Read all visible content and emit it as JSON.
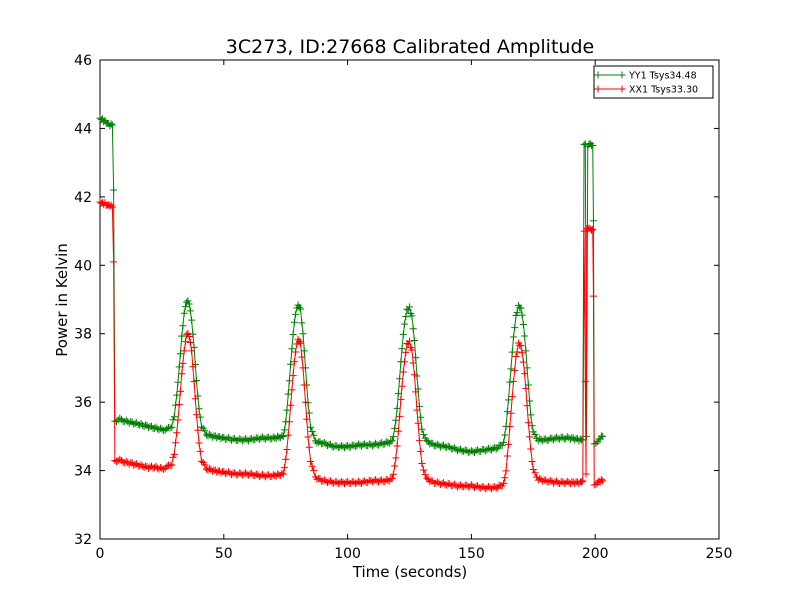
{
  "chart_data": {
    "type": "line",
    "title": "3C273, ID:27668 Calibrated Amplitude",
    "xlabel": "Time (seconds)",
    "ylabel": "Power in Kelvin",
    "xlim": [
      0,
      250
    ],
    "ylim": [
      32,
      46
    ],
    "x_ticks": [
      0,
      50,
      100,
      150,
      200,
      250
    ],
    "y_ticks": [
      32,
      34,
      36,
      38,
      40,
      42,
      44,
      46
    ],
    "grid": false,
    "legend_position": "top-right",
    "series": [
      {
        "name": "YY1 Tsys34.48",
        "color": "#008000",
        "marker": "+",
        "points": [
          [
            0,
            44.3
          ],
          [
            1,
            44.25
          ],
          [
            2,
            44.2
          ],
          [
            3,
            44.15
          ],
          [
            4,
            44.1
          ],
          [
            5,
            44.1
          ],
          [
            5.5,
            42.2
          ],
          [
            6,
            35.45
          ],
          [
            8,
            35.5
          ],
          [
            10,
            35.45
          ],
          [
            13,
            35.4
          ],
          [
            16,
            35.35
          ],
          [
            19,
            35.3
          ],
          [
            22,
            35.25
          ],
          [
            25,
            35.2
          ],
          [
            27,
            35.2
          ],
          [
            29,
            35.3
          ],
          [
            30,
            35.6
          ],
          [
            31,
            36.2
          ],
          [
            32,
            37.0
          ],
          [
            33,
            37.9
          ],
          [
            34,
            38.6
          ],
          [
            35,
            38.95
          ],
          [
            36,
            38.9
          ],
          [
            37,
            38.4
          ],
          [
            38,
            37.6
          ],
          [
            39,
            36.6
          ],
          [
            40,
            35.8
          ],
          [
            41,
            35.3
          ],
          [
            43,
            35.05
          ],
          [
            46,
            35.0
          ],
          [
            50,
            34.95
          ],
          [
            55,
            34.9
          ],
          [
            60,
            34.9
          ],
          [
            65,
            34.95
          ],
          [
            70,
            34.95
          ],
          [
            74,
            35.0
          ],
          [
            75,
            35.4
          ],
          [
            76,
            36.2
          ],
          [
            77,
            37.1
          ],
          [
            78,
            38.0
          ],
          [
            79,
            38.6
          ],
          [
            80,
            38.85
          ],
          [
            81,
            38.7
          ],
          [
            82,
            38.0
          ],
          [
            83,
            37.0
          ],
          [
            84,
            36.0
          ],
          [
            85,
            35.3
          ],
          [
            87,
            34.85
          ],
          [
            90,
            34.8
          ],
          [
            95,
            34.7
          ],
          [
            100,
            34.7
          ],
          [
            105,
            34.75
          ],
          [
            110,
            34.75
          ],
          [
            115,
            34.8
          ],
          [
            118,
            34.85
          ],
          [
            119,
            35.2
          ],
          [
            120,
            35.8
          ],
          [
            121,
            36.7
          ],
          [
            122,
            37.6
          ],
          [
            123,
            38.3
          ],
          [
            124,
            38.7
          ],
          [
            125,
            38.75
          ],
          [
            126,
            38.5
          ],
          [
            127,
            37.8
          ],
          [
            128,
            36.8
          ],
          [
            129,
            35.9
          ],
          [
            130,
            35.2
          ],
          [
            132,
            34.85
          ],
          [
            135,
            34.75
          ],
          [
            140,
            34.7
          ],
          [
            145,
            34.6
          ],
          [
            150,
            34.55
          ],
          [
            155,
            34.6
          ],
          [
            160,
            34.65
          ],
          [
            163,
            34.8
          ],
          [
            164,
            35.3
          ],
          [
            165,
            36.1
          ],
          [
            166,
            37.0
          ],
          [
            167,
            37.9
          ],
          [
            168,
            38.5
          ],
          [
            169,
            38.8
          ],
          [
            170,
            38.75
          ],
          [
            171,
            38.3
          ],
          [
            172,
            37.5
          ],
          [
            173,
            36.5
          ],
          [
            174,
            35.6
          ],
          [
            175,
            35.1
          ],
          [
            177,
            34.9
          ],
          [
            180,
            34.9
          ],
          [
            185,
            34.95
          ],
          [
            190,
            34.95
          ],
          [
            194,
            34.9
          ],
          [
            195,
            34.9
          ],
          [
            195.5,
            43.5
          ],
          [
            196,
            43.55
          ],
          [
            196.5,
            35.0
          ],
          [
            197,
            43.5
          ],
          [
            198,
            43.55
          ],
          [
            199,
            43.5
          ],
          [
            199.3,
            41.3
          ],
          [
            199.6,
            34.8
          ],
          [
            201,
            34.85
          ],
          [
            202,
            34.95
          ],
          [
            203,
            35.0
          ]
        ]
      },
      {
        "name": "XX1 Tsys33.30",
        "color": "#ff0000",
        "marker": "+",
        "points": [
          [
            0,
            41.85
          ],
          [
            1,
            41.8
          ],
          [
            2,
            41.8
          ],
          [
            3,
            41.75
          ],
          [
            4,
            41.75
          ],
          [
            5,
            41.7
          ],
          [
            5.5,
            40.1
          ],
          [
            6,
            34.3
          ],
          [
            8,
            34.3
          ],
          [
            10,
            34.25
          ],
          [
            13,
            34.2
          ],
          [
            16,
            34.15
          ],
          [
            19,
            34.1
          ],
          [
            22,
            34.1
          ],
          [
            25,
            34.05
          ],
          [
            27,
            34.1
          ],
          [
            29,
            34.2
          ],
          [
            30,
            34.5
          ],
          [
            31,
            35.1
          ],
          [
            32,
            35.9
          ],
          [
            33,
            36.8
          ],
          [
            34,
            37.5
          ],
          [
            35,
            38.0
          ],
          [
            36,
            37.95
          ],
          [
            37,
            37.5
          ],
          [
            38,
            36.6
          ],
          [
            39,
            35.6
          ],
          [
            40,
            34.8
          ],
          [
            41,
            34.3
          ],
          [
            43,
            34.05
          ],
          [
            46,
            34.0
          ],
          [
            50,
            33.95
          ],
          [
            55,
            33.9
          ],
          [
            60,
            33.9
          ],
          [
            65,
            33.85
          ],
          [
            70,
            33.85
          ],
          [
            74,
            33.9
          ],
          [
            75,
            34.3
          ],
          [
            76,
            35.0
          ],
          [
            77,
            35.9
          ],
          [
            78,
            36.8
          ],
          [
            79,
            37.5
          ],
          [
            80,
            37.85
          ],
          [
            81,
            37.7
          ],
          [
            82,
            37.0
          ],
          [
            83,
            36.0
          ],
          [
            84,
            35.0
          ],
          [
            85,
            34.3
          ],
          [
            87,
            33.8
          ],
          [
            90,
            33.7
          ],
          [
            95,
            33.65
          ],
          [
            100,
            33.65
          ],
          [
            105,
            33.65
          ],
          [
            110,
            33.7
          ],
          [
            115,
            33.7
          ],
          [
            118,
            33.75
          ],
          [
            119,
            34.1
          ],
          [
            120,
            34.7
          ],
          [
            121,
            35.6
          ],
          [
            122,
            36.5
          ],
          [
            123,
            37.2
          ],
          [
            124,
            37.7
          ],
          [
            125,
            37.75
          ],
          [
            126,
            37.5
          ],
          [
            127,
            36.8
          ],
          [
            128,
            35.8
          ],
          [
            129,
            34.9
          ],
          [
            130,
            34.2
          ],
          [
            132,
            33.75
          ],
          [
            135,
            33.65
          ],
          [
            140,
            33.6
          ],
          [
            145,
            33.55
          ],
          [
            150,
            33.55
          ],
          [
            155,
            33.5
          ],
          [
            160,
            33.5
          ],
          [
            163,
            33.6
          ],
          [
            164,
            34.0
          ],
          [
            165,
            34.8
          ],
          [
            166,
            35.7
          ],
          [
            167,
            36.6
          ],
          [
            168,
            37.3
          ],
          [
            169,
            37.7
          ],
          [
            170,
            37.65
          ],
          [
            171,
            37.2
          ],
          [
            172,
            36.4
          ],
          [
            173,
            35.4
          ],
          [
            174,
            34.6
          ],
          [
            175,
            34.0
          ],
          [
            177,
            33.75
          ],
          [
            180,
            33.7
          ],
          [
            185,
            33.65
          ],
          [
            190,
            33.65
          ],
          [
            194,
            33.65
          ],
          [
            195,
            33.7
          ],
          [
            195.5,
            41.0
          ],
          [
            196,
            36.6
          ],
          [
            196.3,
            33.9
          ],
          [
            196.6,
            41.05
          ],
          [
            197,
            41.1
          ],
          [
            198,
            41.05
          ],
          [
            199,
            41.05
          ],
          [
            199.3,
            39.1
          ],
          [
            199.6,
            33.6
          ],
          [
            201,
            33.65
          ],
          [
            202,
            33.7
          ],
          [
            203,
            33.7
          ]
        ]
      }
    ]
  }
}
